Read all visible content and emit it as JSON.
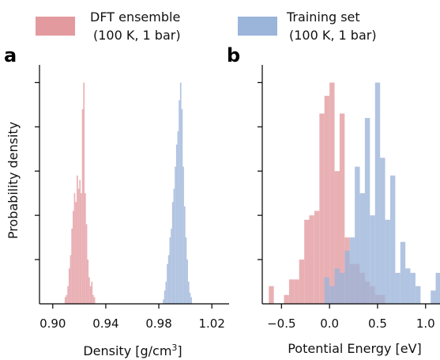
{
  "legend": {
    "items": [
      {
        "line1": "DFT ensemble",
        "line2": "(100 K, 1 bar)",
        "color": "#e39a9f"
      },
      {
        "line1": "Training set",
        "line2": "(100 K, 1 bar)",
        "color": "#9bb4d9"
      }
    ]
  },
  "chart_data": [
    {
      "panel": "a",
      "type": "histogram",
      "xlabel_main": "Density [g/cm",
      "xlabel_sup": "3",
      "xlabel_end": "]",
      "ylabel": "Probability density",
      "xlim": [
        0.89,
        1.033
      ],
      "ylim": [
        0,
        1.08
      ],
      "xticks": [
        0.9,
        0.94,
        0.98,
        1.02
      ],
      "xtick_labels": [
        "0.90",
        "0.94",
        "0.98",
        "1.02"
      ],
      "y_ticks_unlabeled": [
        0.2,
        0.4,
        0.6,
        0.8,
        1.0
      ],
      "series": [
        {
          "name": "DFT ensemble",
          "color": "#e39a9f",
          "bin_width": 0.001,
          "bins": [
            [
              0.909,
              0.03
            ],
            [
              0.91,
              0.04
            ],
            [
              0.911,
              0.08
            ],
            [
              0.912,
              0.16
            ],
            [
              0.913,
              0.22
            ],
            [
              0.914,
              0.34
            ],
            [
              0.915,
              0.42
            ],
            [
              0.916,
              0.5
            ],
            [
              0.917,
              0.46
            ],
            [
              0.918,
              0.58
            ],
            [
              0.919,
              0.52
            ],
            [
              0.92,
              0.56
            ],
            [
              0.921,
              0.5
            ],
            [
              0.922,
              0.88
            ],
            [
              0.923,
              1.0
            ],
            [
              0.924,
              0.5
            ],
            [
              0.925,
              0.36
            ],
            [
              0.926,
              0.2
            ],
            [
              0.927,
              0.12
            ],
            [
              0.928,
              0.08
            ],
            [
              0.929,
              0.1
            ],
            [
              0.93,
              0.04
            ],
            [
              0.931,
              0.03
            ]
          ]
        },
        {
          "name": "Training set",
          "color": "#9bb4d9",
          "bin_width": 0.001,
          "bins": [
            [
              0.983,
              0.02
            ],
            [
              0.984,
              0.06
            ],
            [
              0.985,
              0.1
            ],
            [
              0.986,
              0.18
            ],
            [
              0.987,
              0.22
            ],
            [
              0.988,
              0.3
            ],
            [
              0.989,
              0.34
            ],
            [
              0.99,
              0.46
            ],
            [
              0.991,
              0.52
            ],
            [
              0.992,
              0.62
            ],
            [
              0.993,
              0.72
            ],
            [
              0.994,
              0.78
            ],
            [
              0.995,
              0.92
            ],
            [
              0.996,
              1.0
            ],
            [
              0.997,
              0.88
            ],
            [
              0.998,
              0.62
            ],
            [
              0.999,
              0.44
            ],
            [
              1.0,
              0.3
            ],
            [
              1.001,
              0.2
            ],
            [
              1.002,
              0.1
            ],
            [
              1.003,
              0.05
            ],
            [
              1.004,
              0.03
            ]
          ]
        }
      ]
    },
    {
      "panel": "b",
      "type": "histogram",
      "xlabel": "Potential Energy [eV]",
      "xlim": [
        -0.7,
        1.15
      ],
      "ylim": [
        0,
        1.08
      ],
      "xticks": [
        -0.5,
        0.0,
        0.5,
        1.0
      ],
      "xtick_labels": [
        "−0.5",
        "0.0",
        "0.5",
        "1.0"
      ],
      "y_ticks_unlabeled": [
        0.2,
        0.4,
        0.6,
        0.8,
        1.0
      ],
      "series": [
        {
          "name": "DFT ensemble",
          "color": "#e39a9f",
          "bin_width": 0.0526,
          "bins": [
            [
              -0.632,
              0.08
            ],
            [
              -0.579,
              0.0
            ],
            [
              -0.526,
              0.0
            ],
            [
              -0.474,
              0.04
            ],
            [
              -0.421,
              0.11
            ],
            [
              -0.368,
              0.11
            ],
            [
              -0.316,
              0.2
            ],
            [
              -0.263,
              0.38
            ],
            [
              -0.211,
              0.4
            ],
            [
              -0.158,
              0.42
            ],
            [
              -0.105,
              0.86
            ],
            [
              -0.053,
              0.94
            ],
            [
              0.0,
              1.0
            ],
            [
              0.053,
              0.6
            ],
            [
              0.105,
              0.86
            ],
            [
              0.158,
              0.3
            ],
            [
              0.211,
              0.18
            ],
            [
              0.263,
              0.18
            ],
            [
              0.316,
              0.14
            ],
            [
              0.368,
              0.1
            ],
            [
              0.421,
              0.08
            ],
            [
              0.474,
              0.04
            ],
            [
              0.526,
              0.04
            ]
          ]
        },
        {
          "name": "Training set",
          "color": "#9bb4d9",
          "bin_width": 0.0526,
          "bins": [
            [
              -0.053,
              0.12
            ],
            [
              0.0,
              0.08
            ],
            [
              0.053,
              0.16
            ],
            [
              0.105,
              0.14
            ],
            [
              0.158,
              0.24
            ],
            [
              0.211,
              0.3
            ],
            [
              0.263,
              0.62
            ],
            [
              0.316,
              0.5
            ],
            [
              0.368,
              0.84
            ],
            [
              0.421,
              0.4
            ],
            [
              0.474,
              1.0
            ],
            [
              0.526,
              0.66
            ],
            [
              0.579,
              0.38
            ],
            [
              0.632,
              0.58
            ],
            [
              0.684,
              0.14
            ],
            [
              0.737,
              0.28
            ],
            [
              0.789,
              0.16
            ],
            [
              0.842,
              0.14
            ],
            [
              0.895,
              0.08
            ],
            [
              0.947,
              0.0
            ],
            [
              1.0,
              0.0
            ],
            [
              1.053,
              0.06
            ],
            [
              1.105,
              0.14
            ]
          ]
        }
      ]
    }
  ]
}
